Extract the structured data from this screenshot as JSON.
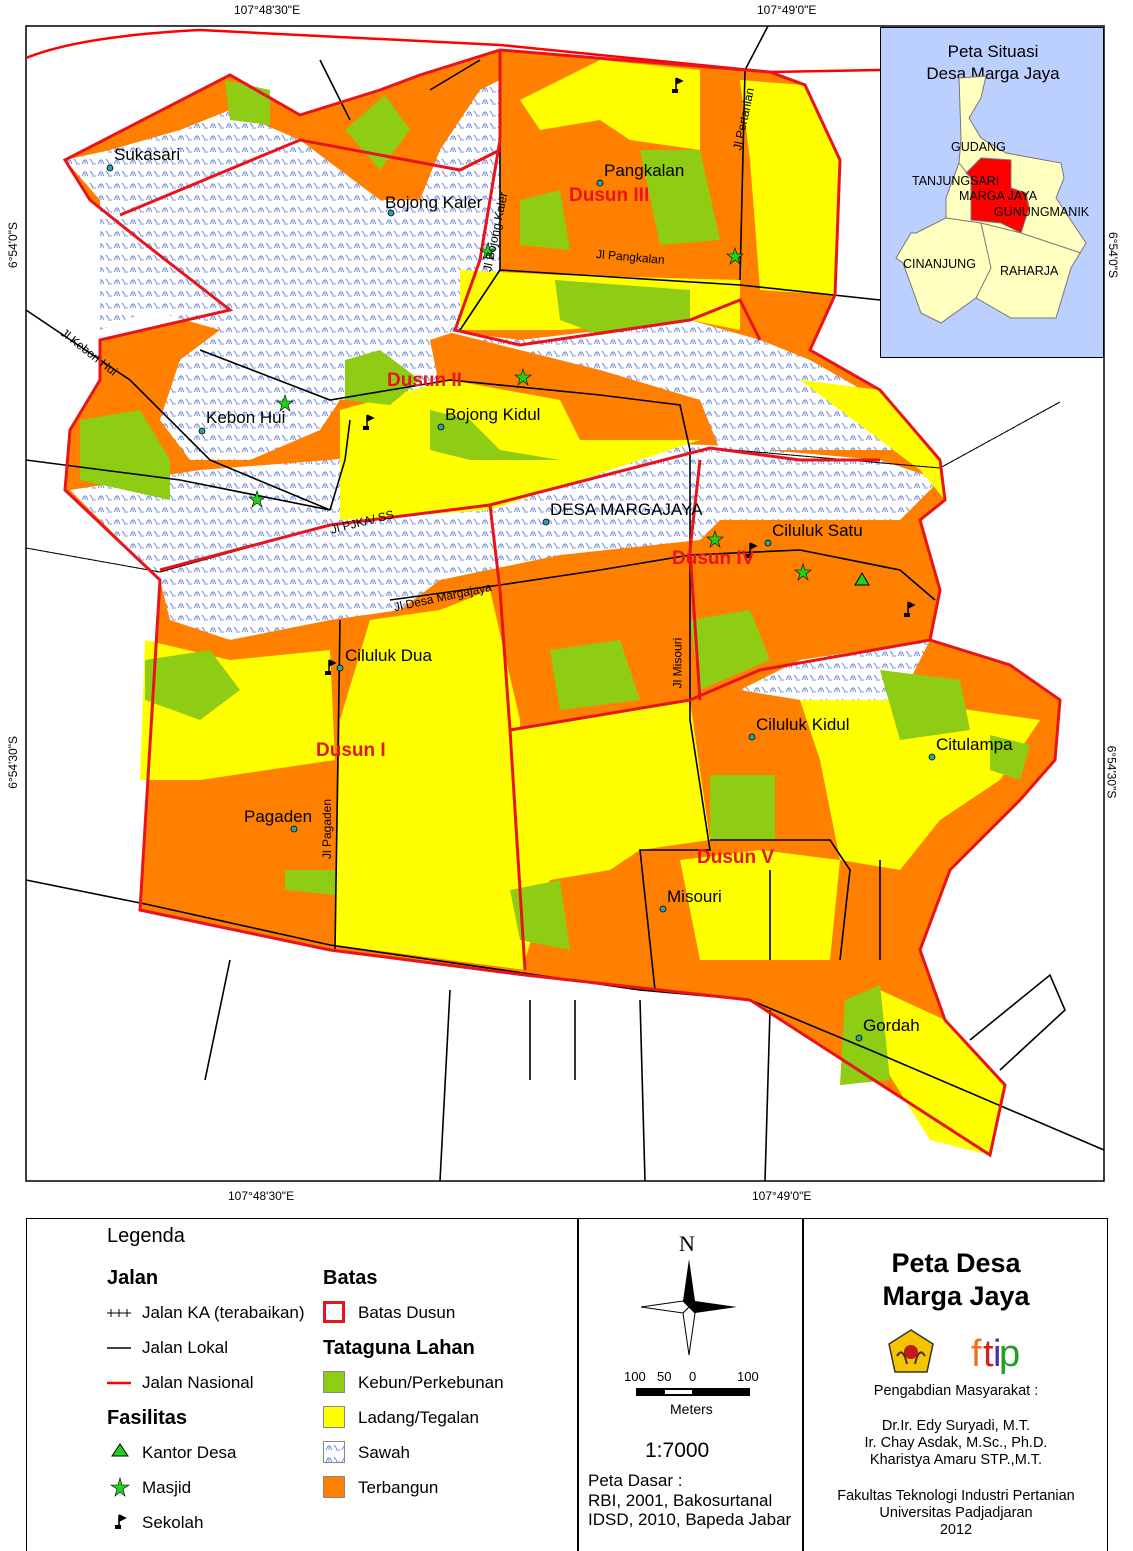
{
  "map": {
    "title": "Peta Desa Marga Jaya",
    "coords": {
      "top": [
        "107°48'30\"E",
        "107°49'0\"E"
      ],
      "bottom": [
        "107°48'30\"E",
        "107°49'0\"E"
      ],
      "left": [
        "6°54'0\"S",
        "6°54'30\"S"
      ],
      "right": [
        "6°54'0\"S",
        "6°54'30\"S"
      ]
    },
    "dusun": [
      "Dusun I",
      "Dusun II",
      "Dusun III",
      "Dusun IV",
      "Dusun V"
    ],
    "places": [
      "Sukasari",
      "Bojong Kaler",
      "Pangkalan",
      "Kebon Hui",
      "Bojong Kidul",
      "DESA MARGAJAYA",
      "Ciluluk Satu",
      "Ciluluk Dua",
      "Ciluluk Kidul",
      "Citulampa",
      "Pagaden",
      "Misouri",
      "Gordah"
    ],
    "roads": [
      "Jl Pertanian",
      "Jl Bojong Kaler",
      "Jl Pangkalan",
      "Jl Kebon Hui",
      "Jl PJKA/ SS",
      "Jl Desa Margajaya",
      "Jl Misouri",
      "Jl Pagaden"
    ],
    "colors": {
      "kebun": "#8fcc14",
      "ladang": "#ffff00",
      "sawah": "#ffffff",
      "sawah_mark": "#4a6fe0",
      "terbangun": "#ff8000",
      "batas": "#e8141c",
      "nasional": "#ff0000"
    }
  },
  "inset": {
    "title_line1": "Peta Situasi",
    "title_line2": "Desa Marga Jaya",
    "labels": [
      "GUDANG",
      "TANJUNGSARI",
      "MARGA JAYA",
      "GUNUNGMANIK",
      "CINANJUNG",
      "RAHARJA"
    ],
    "colors": {
      "water": "#bcd0ff",
      "land": "#ffffc0",
      "highlight": "#ff0000"
    }
  },
  "legend": {
    "title": "Legenda",
    "jalan": {
      "heading": "Jalan",
      "items": [
        "Jalan KA (terabaikan)",
        "Jalan Lokal",
        "Jalan Nasional"
      ]
    },
    "fasilitas": {
      "heading": "Fasilitas",
      "items": [
        {
          "label": "Kantor Desa",
          "icon": "triangle-icon"
        },
        {
          "label": "Masjid",
          "icon": "star-icon"
        },
        {
          "label": "Sekolah",
          "icon": "flag-icon"
        }
      ]
    },
    "batas": {
      "heading": "Batas",
      "items": [
        "Batas Dusun"
      ]
    },
    "tataguna": {
      "heading": "Tataguna Lahan",
      "items": [
        "Kebun/Perkebunan",
        "Ladang/Tegalan",
        "Sawah",
        "Terbangun"
      ]
    }
  },
  "scale": {
    "north": "N",
    "ticks": [
      "100",
      "50",
      "0",
      "100"
    ],
    "unit": "Meters",
    "ratio": "1:7000",
    "source_heading": "Peta Dasar :",
    "sources": [
      "RBI, 2001, Bakosurtanal",
      "IDSD, 2010, Bapeda Jabar"
    ]
  },
  "credits": {
    "title_line1": "Peta Desa",
    "title_line2": "Marga Jaya",
    "logo_text": "ftip",
    "program": "Pengabdian Masyarakat :",
    "authors": [
      "Dr.Ir. Edy Suryadi, M.T.",
      "Ir. Chay Asdak,  M.Sc., Ph.D.",
      "Kharistya Amaru STP.,M.T."
    ],
    "institution": [
      "Fakultas Teknologi Industri Pertanian",
      "Universitas Padjadjaran",
      "2012"
    ]
  }
}
